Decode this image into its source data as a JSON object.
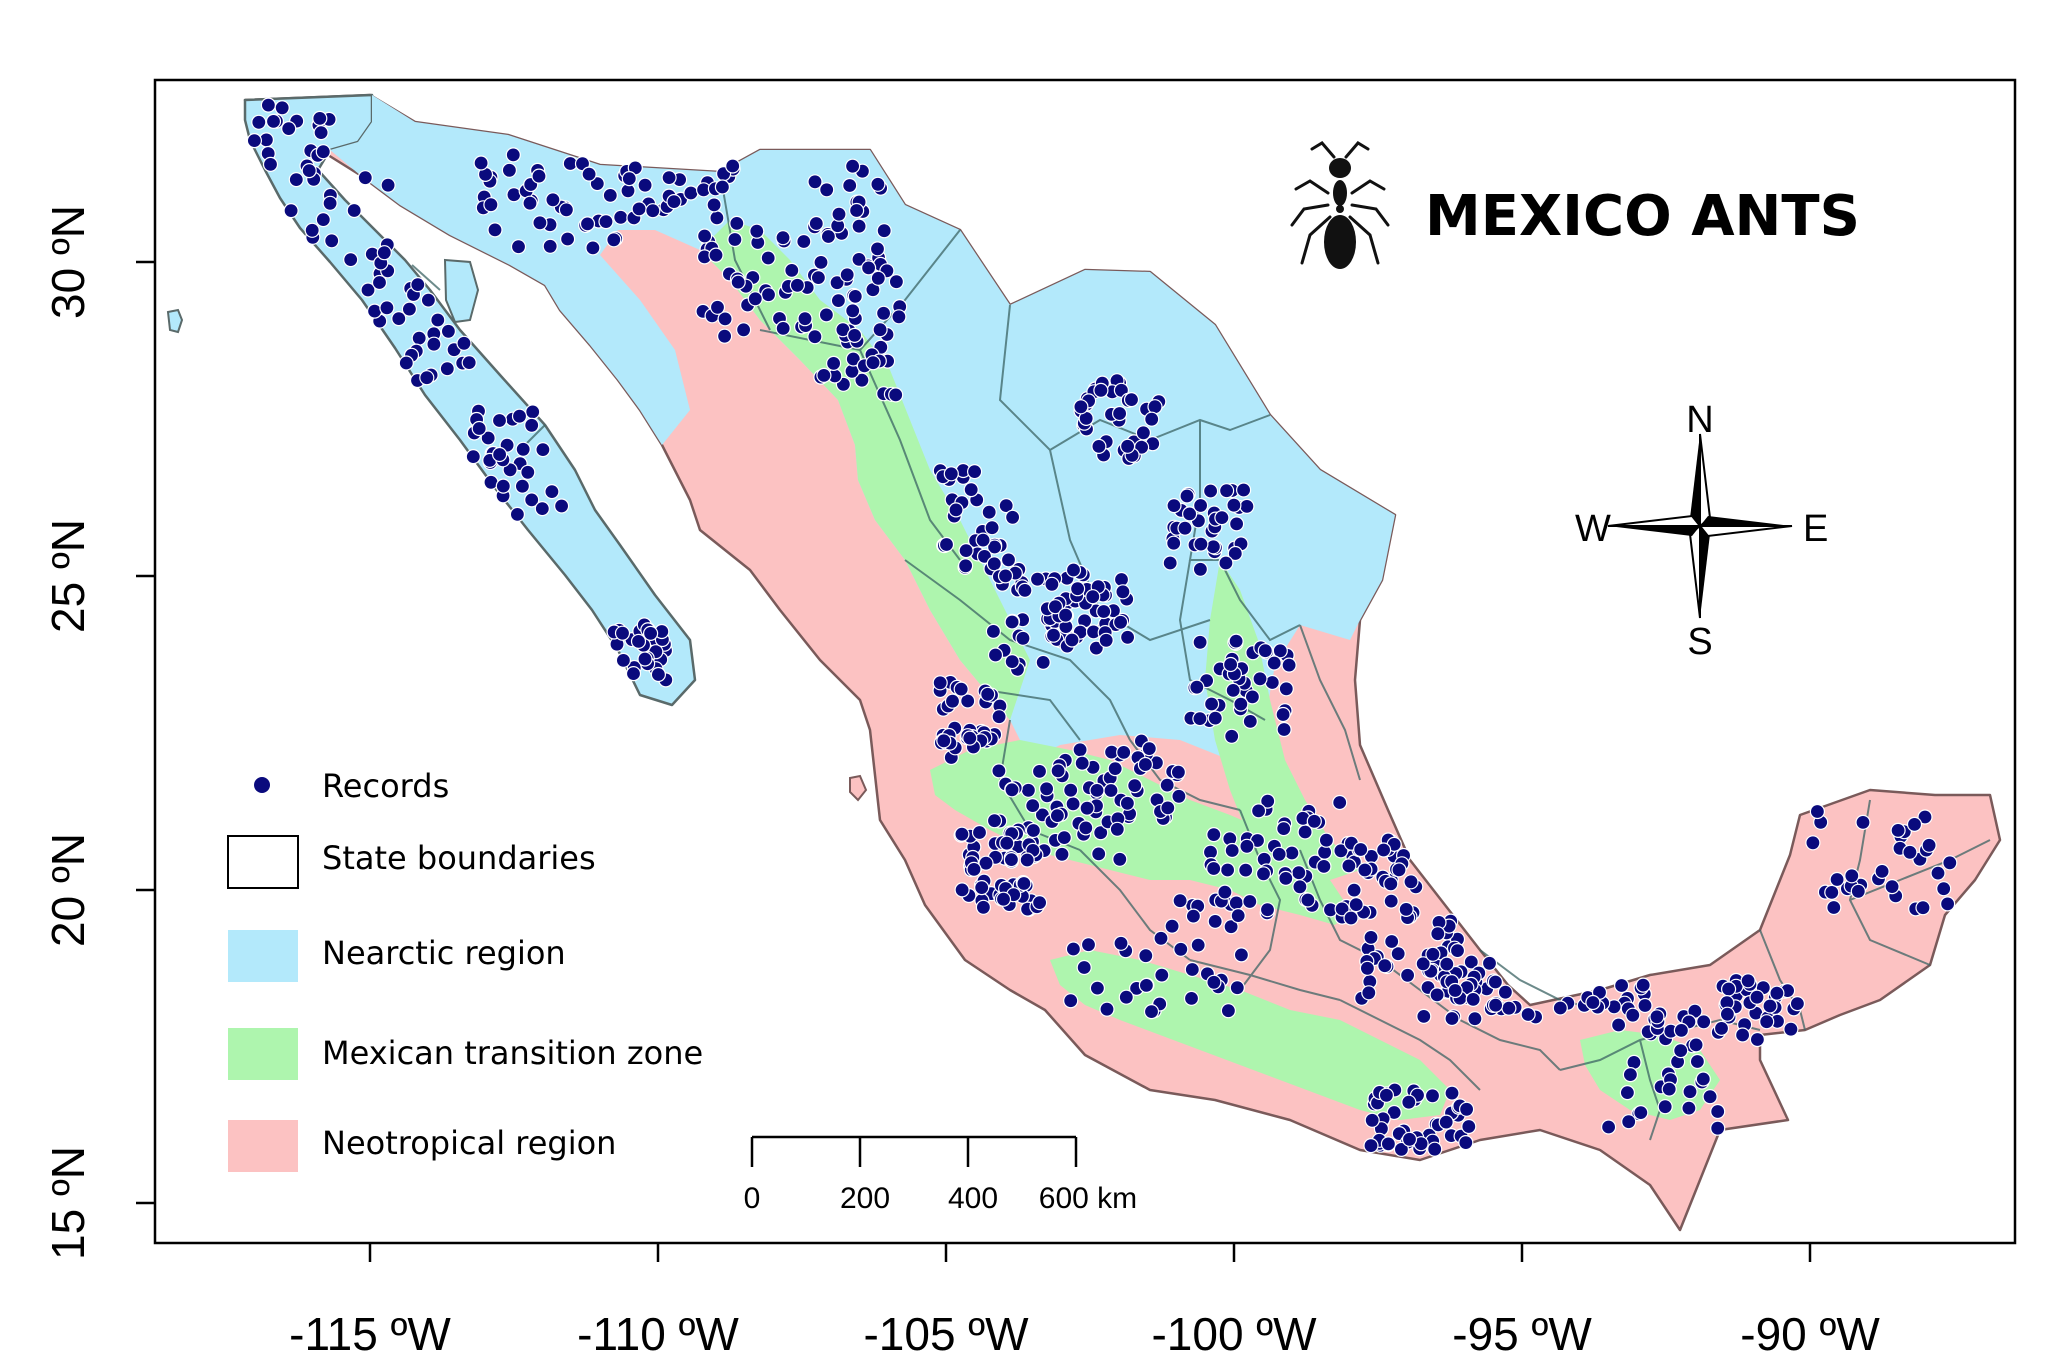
{
  "title": "MEXICO ANTS",
  "axes": {
    "x_ticks": [
      "-115 ºW",
      "-110 ºW",
      "-105 ºW",
      "-100 ºW",
      "-95 ºW",
      "-90 ºW"
    ],
    "y_ticks": [
      "15 ºN",
      "20 ºN",
      "25 ºN",
      "30 ºN"
    ]
  },
  "legend": {
    "records": "Records",
    "state_boundaries": "State boundaries",
    "nearctic": "Nearctic region",
    "transition": "Mexican transition zone",
    "neotropical": "Neotropical region"
  },
  "compass": {
    "n": "N",
    "s": "S",
    "e": "E",
    "w": "W"
  },
  "scale_bar": {
    "labels": [
      "0",
      "200",
      "400",
      "600 km"
    ]
  },
  "colors": {
    "nearctic": "#b3e9fb",
    "transition": "#aef5ae",
    "neotropical": "#fcc2c2",
    "records": "#0a0a7d",
    "state_boundary": "#3c6464"
  },
  "icons": {
    "logo": "ant-icon",
    "compass": "compass-rose-icon"
  }
}
